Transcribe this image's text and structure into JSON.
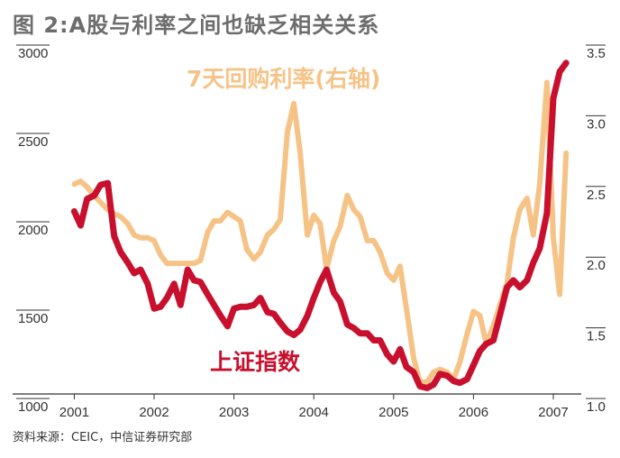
{
  "title": "图 2:A股与利率之间也缺乏相关关系",
  "source": "资料来源：CEIC，中信证券研究部",
  "chart_data": {
    "type": "line",
    "x_tick_labels": [
      "2001",
      "2002",
      "2003",
      "2004",
      "2005",
      "2006",
      "2007"
    ],
    "x_range": [
      2000.95,
      2007.35
    ],
    "y_left": {
      "ticks": [
        "3000",
        "2500",
        "2000",
        "1500",
        "1000"
      ],
      "range": [
        1000,
        3000
      ]
    },
    "y_right": {
      "ticks": [
        "3.5",
        "3.0",
        "2.5",
        "2.0",
        "1.5",
        "1.0"
      ],
      "range": [
        1.0,
        3.5
      ]
    },
    "grid": false,
    "legend": "inline labels",
    "series": [
      {
        "name": "上证指数",
        "axis": "left",
        "color": "#c8102e",
        "points": [
          [
            2001.0,
            2110
          ],
          [
            2001.08,
            2030
          ],
          [
            2001.16,
            2180
          ],
          [
            2001.25,
            2200
          ],
          [
            2001.33,
            2260
          ],
          [
            2001.42,
            2270
          ],
          [
            2001.5,
            1970
          ],
          [
            2001.58,
            1880
          ],
          [
            2001.67,
            1820
          ],
          [
            2001.75,
            1760
          ],
          [
            2001.83,
            1780
          ],
          [
            2001.92,
            1700
          ],
          [
            2002.0,
            1560
          ],
          [
            2002.08,
            1570
          ],
          [
            2002.16,
            1620
          ],
          [
            2002.25,
            1700
          ],
          [
            2002.33,
            1580
          ],
          [
            2002.42,
            1780
          ],
          [
            2002.5,
            1720
          ],
          [
            2002.58,
            1710
          ],
          [
            2002.67,
            1640
          ],
          [
            2002.75,
            1580
          ],
          [
            2002.83,
            1520
          ],
          [
            2002.92,
            1460
          ],
          [
            2003.0,
            1560
          ],
          [
            2003.08,
            1570
          ],
          [
            2003.16,
            1570
          ],
          [
            2003.25,
            1580
          ],
          [
            2003.33,
            1620
          ],
          [
            2003.42,
            1540
          ],
          [
            2003.5,
            1530
          ],
          [
            2003.58,
            1480
          ],
          [
            2003.67,
            1430
          ],
          [
            2003.75,
            1410
          ],
          [
            2003.83,
            1440
          ],
          [
            2003.92,
            1520
          ],
          [
            2004.0,
            1620
          ],
          [
            2004.08,
            1710
          ],
          [
            2004.16,
            1780
          ],
          [
            2004.25,
            1650
          ],
          [
            2004.33,
            1600
          ],
          [
            2004.42,
            1470
          ],
          [
            2004.5,
            1450
          ],
          [
            2004.58,
            1420
          ],
          [
            2004.67,
            1420
          ],
          [
            2004.75,
            1380
          ],
          [
            2004.83,
            1380
          ],
          [
            2004.92,
            1300
          ],
          [
            2005.0,
            1260
          ],
          [
            2005.08,
            1330
          ],
          [
            2005.16,
            1230
          ],
          [
            2005.25,
            1200
          ],
          [
            2005.33,
            1120
          ],
          [
            2005.42,
            1110
          ],
          [
            2005.5,
            1130
          ],
          [
            2005.58,
            1190
          ],
          [
            2005.67,
            1180
          ],
          [
            2005.75,
            1150
          ],
          [
            2005.83,
            1140
          ],
          [
            2005.92,
            1160
          ],
          [
            2006.0,
            1240
          ],
          [
            2006.08,
            1320
          ],
          [
            2006.16,
            1360
          ],
          [
            2006.25,
            1380
          ],
          [
            2006.33,
            1520
          ],
          [
            2006.42,
            1680
          ],
          [
            2006.5,
            1720
          ],
          [
            2006.58,
            1680
          ],
          [
            2006.67,
            1720
          ],
          [
            2006.75,
            1820
          ],
          [
            2006.83,
            1900
          ],
          [
            2006.92,
            2100
          ],
          [
            2007.0,
            2750
          ],
          [
            2007.08,
            2900
          ],
          [
            2007.16,
            2950
          ]
        ]
      },
      {
        "name": "7天回购利率(右轴)",
        "axis": "right",
        "color": "#f6c387",
        "points": [
          [
            2001.0,
            2.58
          ],
          [
            2001.08,
            2.6
          ],
          [
            2001.16,
            2.56
          ],
          [
            2001.25,
            2.5
          ],
          [
            2001.33,
            2.45
          ],
          [
            2001.42,
            2.4
          ],
          [
            2001.5,
            2.37
          ],
          [
            2001.58,
            2.35
          ],
          [
            2001.67,
            2.3
          ],
          [
            2001.75,
            2.22
          ],
          [
            2001.83,
            2.2
          ],
          [
            2001.92,
            2.2
          ],
          [
            2002.0,
            2.18
          ],
          [
            2002.08,
            2.08
          ],
          [
            2002.16,
            2.02
          ],
          [
            2002.25,
            2.02
          ],
          [
            2002.33,
            2.02
          ],
          [
            2002.42,
            2.02
          ],
          [
            2002.5,
            2.02
          ],
          [
            2002.58,
            2.04
          ],
          [
            2002.67,
            2.24
          ],
          [
            2002.75,
            2.32
          ],
          [
            2002.83,
            2.32
          ],
          [
            2002.92,
            2.38
          ],
          [
            2003.0,
            2.35
          ],
          [
            2003.08,
            2.32
          ],
          [
            2003.16,
            2.12
          ],
          [
            2003.25,
            2.05
          ],
          [
            2003.33,
            2.1
          ],
          [
            2003.42,
            2.22
          ],
          [
            2003.5,
            2.26
          ],
          [
            2003.58,
            2.33
          ],
          [
            2003.67,
            2.95
          ],
          [
            2003.75,
            3.15
          ],
          [
            2003.83,
            2.8
          ],
          [
            2003.92,
            2.22
          ],
          [
            2004.0,
            2.36
          ],
          [
            2004.08,
            2.3
          ],
          [
            2004.16,
            1.98
          ],
          [
            2004.25,
            2.18
          ],
          [
            2004.33,
            2.28
          ],
          [
            2004.42,
            2.5
          ],
          [
            2004.5,
            2.4
          ],
          [
            2004.58,
            2.35
          ],
          [
            2004.67,
            2.18
          ],
          [
            2004.75,
            2.18
          ],
          [
            2004.83,
            2.1
          ],
          [
            2004.92,
            1.95
          ],
          [
            2005.0,
            1.9
          ],
          [
            2005.08,
            2.0
          ],
          [
            2005.16,
            1.7
          ],
          [
            2005.25,
            1.35
          ],
          [
            2005.33,
            1.18
          ],
          [
            2005.42,
            1.18
          ],
          [
            2005.5,
            1.25
          ],
          [
            2005.58,
            1.27
          ],
          [
            2005.67,
            1.25
          ],
          [
            2005.75,
            1.2
          ],
          [
            2005.83,
            1.32
          ],
          [
            2005.92,
            1.52
          ],
          [
            2006.0,
            1.68
          ],
          [
            2006.08,
            1.65
          ],
          [
            2006.16,
            1.45
          ],
          [
            2006.25,
            1.58
          ],
          [
            2006.33,
            1.72
          ],
          [
            2006.42,
            1.88
          ],
          [
            2006.5,
            2.2
          ],
          [
            2006.58,
            2.4
          ],
          [
            2006.67,
            2.48
          ],
          [
            2006.75,
            2.22
          ],
          [
            2006.83,
            2.58
          ],
          [
            2006.92,
            3.3
          ],
          [
            2007.0,
            2.2
          ],
          [
            2007.08,
            1.8
          ],
          [
            2007.16,
            2.8
          ]
        ]
      }
    ]
  }
}
